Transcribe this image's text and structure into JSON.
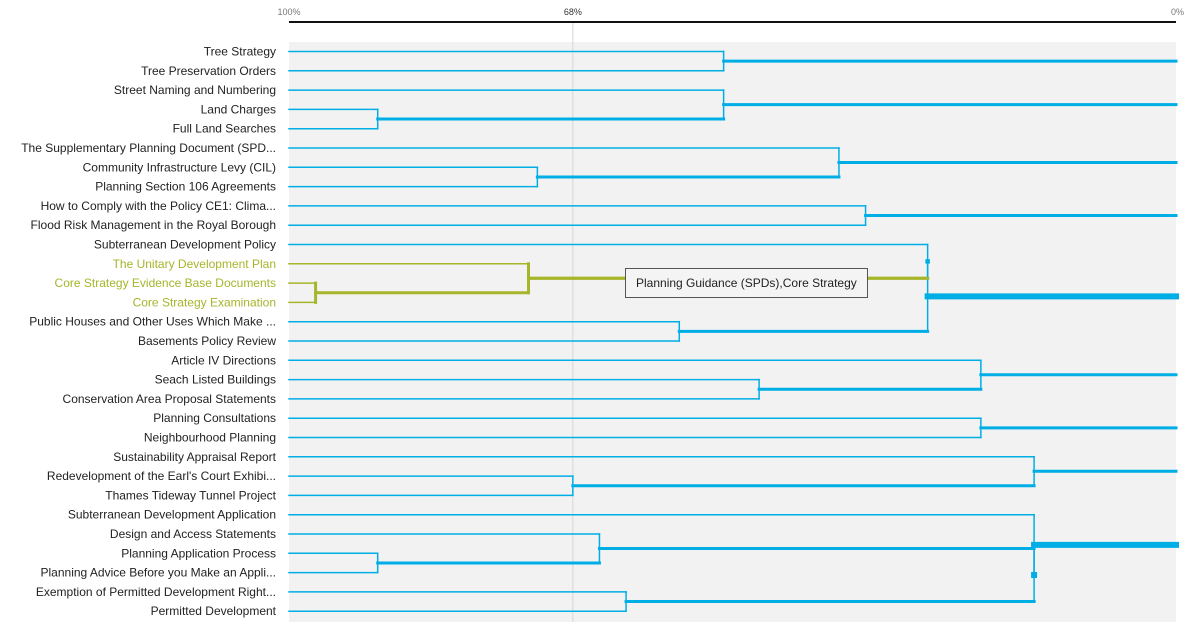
{
  "chart_data": {
    "type": "dendrogram",
    "orientation": "right-to-left",
    "x_axis": {
      "start_label": "100%",
      "end_label": "0%",
      "marker_label": "68%",
      "marker_value": 68
    },
    "leaves": [
      "Tree Strategy",
      "Tree Preservation Orders",
      "Street Naming and Numbering",
      "Land Charges",
      "Full Land Searches",
      "The Supplementary Planning Document (SPD...",
      "Community Infrastructure Levy (CIL)",
      "Planning Section 106 Agreements",
      "How to Comply with the Policy CE1: Clima...",
      "Flood Risk Management in the Royal Borough",
      "Subterranean Development Policy",
      "The Unitary Development Plan",
      "Core Strategy Evidence Base Documents",
      "Core Strategy Examination",
      "Public Houses and Other Uses Which Make ...",
      "Basements Policy Review",
      "Article IV Directions",
      "Seach Listed Buildings",
      "Conservation Area Proposal Statements",
      "Planning Consultations",
      "Neighbourhood Planning",
      "Sustainability Appraisal Report",
      "Redevelopment of the Earl's Court Exhibi...",
      "Thames Tideway Tunnel Project",
      "Subterranean Development Application",
      "Design and Access Statements",
      "Planning Application Process",
      "Planning Advice Before you Make an Appli...",
      "Exemption of Permitted Development Right...",
      "Permitted Development"
    ],
    "highlighted_leaves": [
      11,
      12,
      13
    ],
    "merges": [
      {
        "children": [
          "L0",
          "L1"
        ],
        "similarity": 51,
        "count": 2
      },
      {
        "children": [
          "L3",
          "L4"
        ],
        "similarity": 90,
        "count": 2
      },
      {
        "children": [
          "L2",
          "N1"
        ],
        "similarity": 51,
        "count": 3
      },
      {
        "children": [
          "L6",
          "L7"
        ],
        "similarity": 72,
        "count": 2
      },
      {
        "children": [
          "L5",
          "N3"
        ],
        "similarity": 38,
        "count": 3
      },
      {
        "children": [
          "L8",
          "L9"
        ],
        "similarity": 35,
        "count": 2
      },
      {
        "children": [
          "L12",
          "L13"
        ],
        "similarity": 97,
        "count": 2
      },
      {
        "children": [
          "L11",
          "N6"
        ],
        "similarity": 73,
        "count": 3
      },
      {
        "children": [
          "L14",
          "L15"
        ],
        "similarity": 56,
        "count": 2
      },
      {
        "children": [
          "L10",
          "N7"
        ],
        "similarity": 28,
        "count": 4
      },
      {
        "children": [
          "N9",
          "N8"
        ],
        "similarity": 28,
        "count": 6
      },
      {
        "children": [
          "L17",
          "L18"
        ],
        "similarity": 47,
        "count": 2
      },
      {
        "children": [
          "L16",
          "N11"
        ],
        "similarity": 22,
        "count": 3
      },
      {
        "children": [
          "L19",
          "L20"
        ],
        "similarity": 22,
        "count": 2
      },
      {
        "children": [
          "L22",
          "L23"
        ],
        "similarity": 68,
        "count": 2
      },
      {
        "children": [
          "L21",
          "N14"
        ],
        "similarity": 16,
        "count": 3
      },
      {
        "children": [
          "L26",
          "L27"
        ],
        "similarity": 90,
        "count": 2
      },
      {
        "children": [
          "L25",
          "N16"
        ],
        "similarity": 65,
        "count": 3
      },
      {
        "children": [
          "L28",
          "L29"
        ],
        "similarity": 62,
        "count": 2
      },
      {
        "children": [
          "N17",
          "N18"
        ],
        "similarity": 16,
        "count": 5
      },
      {
        "children": [
          "L24",
          "N19"
        ],
        "similarity": 16,
        "count": 6
      }
    ],
    "cluster_nodes": [
      0,
      2,
      4,
      5,
      10,
      12,
      13,
      15,
      20
    ],
    "highlighted_node": 7,
    "tooltip": "Planning Guidance (SPDs),Core Strategy",
    "colors": {
      "link": "#00aee6",
      "highlight": "#a6b52a",
      "plot_background": "#f2f2f2",
      "marker_line": "#d6d6d6",
      "axis_line": "#111111"
    }
  }
}
